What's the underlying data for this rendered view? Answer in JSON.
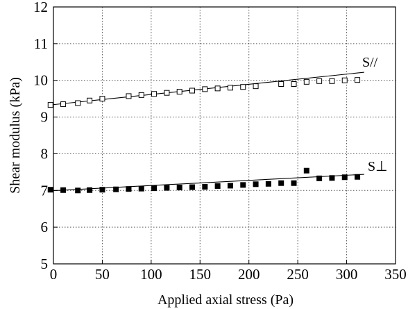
{
  "chart_data": {
    "type": "scatter",
    "title": "",
    "xlabel": "Applied axial stress (Pa)",
    "ylabel": "Shear modulus (kPa)",
    "xlim": [
      0,
      350
    ],
    "ylim": [
      5,
      12
    ],
    "xticks": [
      0,
      50,
      100,
      150,
      200,
      250,
      300,
      350
    ],
    "yticks": [
      5,
      6,
      7,
      8,
      9,
      10,
      11,
      12
    ],
    "grid": "dotted",
    "legend": "none",
    "series": [
      {
        "name": "S//",
        "marker": "open-square",
        "x": [
          -3,
          10,
          25,
          37,
          50,
          77,
          90,
          103,
          116,
          129,
          142,
          155,
          168,
          181,
          194,
          207,
          233,
          246,
          259,
          272,
          285,
          298,
          311
        ],
        "y": [
          9.33,
          9.35,
          9.38,
          9.45,
          9.5,
          9.57,
          9.6,
          9.63,
          9.66,
          9.69,
          9.72,
          9.76,
          9.78,
          9.8,
          9.82,
          9.84,
          9.9,
          9.9,
          9.96,
          9.98,
          9.98,
          10.0,
          10.01
        ],
        "fit": {
          "x": [
            -3,
            318
          ],
          "y": [
            9.33,
            10.22
          ]
        }
      },
      {
        "name": "S⊥",
        "marker": "filled-square",
        "x": [
          -3,
          10,
          25,
          37,
          50,
          64,
          77,
          90,
          103,
          116,
          129,
          142,
          155,
          168,
          181,
          194,
          207,
          220,
          233,
          246,
          259,
          272,
          285,
          298,
          311
        ],
        "y": [
          7.02,
          7.01,
          7.0,
          7.01,
          7.02,
          7.03,
          7.04,
          7.05,
          7.06,
          7.07,
          7.08,
          7.09,
          7.1,
          7.12,
          7.13,
          7.15,
          7.17,
          7.18,
          7.2,
          7.2,
          7.54,
          7.33,
          7.34,
          7.36,
          7.37
        ],
        "fit": {
          "x": [
            -3,
            318
          ],
          "y": [
            6.99,
            7.44
          ]
        }
      }
    ]
  }
}
